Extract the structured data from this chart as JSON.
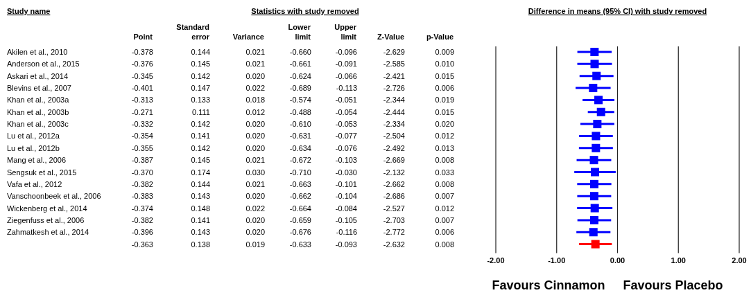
{
  "chart_data": [
    {
      "type": "scatter",
      "orientation": "horizontal",
      "title": "Difference in means (95% CI) with study removed",
      "categories": [
        null,
        null,
        null,
        null,
        null,
        null,
        null,
        null,
        null,
        null,
        null,
        null,
        null,
        null,
        null,
        null,
        null
      ],
      "values": [
        -0.378,
        -0.376,
        -0.345,
        -0.401,
        -0.313,
        -0.271,
        -0.332,
        -0.354,
        -0.355,
        -0.387,
        -0.37,
        -0.382,
        -0.383,
        -0.374,
        -0.382,
        -0.396,
        -0.363
      ],
      "errors": [
        [
          -0.66,
          -0.096
        ],
        [
          -0.661,
          -0.091
        ],
        [
          -0.624,
          -0.066
        ],
        [
          -0.689,
          -0.113
        ],
        [
          -0.574,
          -0.051
        ],
        [
          -0.488,
          -0.054
        ],
        [
          -0.61,
          -0.053
        ],
        [
          -0.631,
          -0.077
        ],
        [
          -0.634,
          -0.076
        ],
        [
          -0.672,
          -0.103
        ],
        [
          -0.71,
          -0.03
        ],
        [
          -0.663,
          -0.101
        ],
        [
          -0.662,
          -0.104
        ],
        [
          -0.664,
          -0.084
        ],
        [
          -0.659,
          -0.105
        ],
        [
          -0.676,
          -0.116
        ],
        [
          -0.633,
          -0.093
        ]
      ],
      "colors": [
        "#0000ff",
        "#0000ff",
        "#0000ff",
        "#0000ff",
        "#0000ff",
        "#0000ff",
        "#0000ff",
        "#0000ff",
        "#0000ff",
        "#0000ff",
        "#0000ff",
        "#0000ff",
        "#0000ff",
        "#0000ff",
        "#0000ff",
        "#0000ff",
        "#ff0000"
      ],
      "marker": "square",
      "grid": "x",
      "xlim": [
        -2,
        2
      ],
      "xticks": [
        {
          "value": -2,
          "label": "-2.00"
        },
        {
          "value": -1,
          "label": "-1.00"
        },
        {
          "value": 0,
          "label": "0.00"
        },
        {
          "value": 1,
          "label": "1.00"
        },
        {
          "value": 2,
          "label": "2.00"
        }
      ],
      "annotations": [
        "Favours Cinnamon",
        "Favours Placebo"
      ]
    },
    {
      "type": "other",
      "title": "Statistics with study removed",
      "categories": [
        "Study name",
        "Point",
        "Standard error",
        "Variance",
        "Lower limit",
        "Upper limit",
        "Z-Value",
        "p-Value"
      ],
      "annotations": [
        "Akilen et al., 2010",
        "-0.378",
        "0.144",
        "0.021",
        "-0.660",
        "-0.096",
        "-2.629",
        "0.009",
        "Anderson et al., 2015",
        "-0.376",
        "0.145",
        "0.021",
        "-0.661",
        "-0.091",
        "-2.585",
        "0.010",
        "Askari et al., 2014",
        "-0.345",
        "0.142",
        "0.020",
        "-0.624",
        "-0.066",
        "-2.421",
        "0.015",
        "Blevins et al., 2007",
        "-0.401",
        "0.147",
        "0.022",
        "-0.689",
        "-0.113",
        "-2.726",
        "0.006",
        "Khan et al., 2003a",
        "-0.313",
        "0.133",
        "0.018",
        "-0.574",
        "-0.051",
        "-2.344",
        "0.019",
        "Khan et al., 2003b",
        "-0.271",
        "0.111",
        "0.012",
        "-0.488",
        "-0.054",
        "-2.444",
        "0.015",
        "Khan et al., 2003c",
        "-0.332",
        "0.142",
        "0.020",
        "-0.610",
        "-0.053",
        "-2.334",
        "0.020",
        "Lu et al., 2012a",
        "-0.354",
        "0.141",
        "0.020",
        "-0.631",
        "-0.077",
        "-2.504",
        "0.012",
        "Lu et al., 2012b",
        "-0.355",
        "0.142",
        "0.020",
        "-0.634",
        "-0.076",
        "-2.492",
        "0.013",
        "Mang et al., 2006",
        "-0.387",
        "0.145",
        "0.021",
        "-0.672",
        "-0.103",
        "-2.669",
        "0.008",
        "Sengsuk et al., 2015",
        "-0.370",
        "0.174",
        "0.030",
        "-0.710",
        "-0.030",
        "-2.132",
        "0.033",
        "Vafa et al., 2012",
        "-0.382",
        "0.144",
        "0.021",
        "-0.663",
        "-0.101",
        "-2.662",
        "0.008",
        "Vanschoonbeek et al., 2006",
        "-0.383",
        "0.143",
        "0.020",
        "-0.662",
        "-0.104",
        "-2.686",
        "0.007",
        "Wickenberg et al., 2014",
        "-0.374",
        "0.148",
        "0.022",
        "-0.664",
        "-0.084",
        "-2.527",
        "0.012",
        "Ziegenfuss et al., 2006",
        "-0.382",
        "0.141",
        "0.020",
        "-0.659",
        "-0.105",
        "-2.703",
        "0.007",
        "Zahmatkesh et al., 2014",
        "-0.396",
        "0.143",
        "0.020",
        "-0.676",
        "-0.116",
        "-2.772",
        "0.006",
        null,
        "-0.363",
        "0.138",
        "0.019",
        "-0.633",
        "-0.093",
        "-2.632",
        "0.008"
      ]
    }
  ]
}
